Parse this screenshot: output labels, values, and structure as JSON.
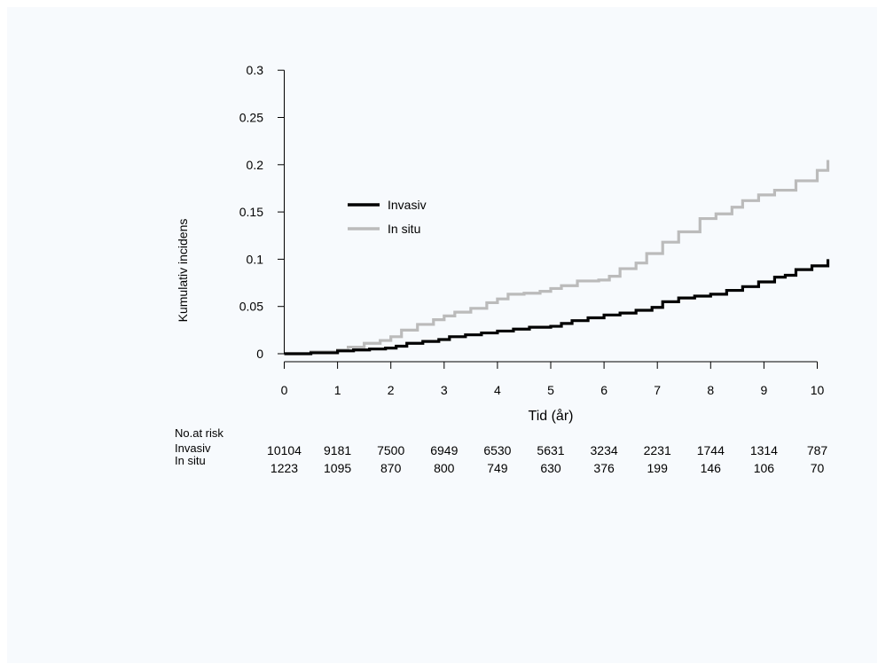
{
  "chart_data": {
    "type": "line",
    "step": true,
    "title": "",
    "xlabel": "Tid (år)",
    "ylabel": "Kumulativ incidens",
    "xlim": [
      0,
      10.2
    ],
    "ylim": [
      0,
      0.3
    ],
    "x_ticks": [
      "0",
      "1",
      "2",
      "3",
      "4",
      "5",
      "6",
      "7",
      "8",
      "9",
      "10"
    ],
    "y_ticks": [
      "0",
      "0.05",
      "0.1",
      "0.15",
      "0.2",
      "0.25",
      "0.3"
    ],
    "legend_placement": "top-left",
    "series": [
      {
        "name": "Invasiv",
        "color": "#000000",
        "x": [
          0,
          0.5,
          1.0,
          1.3,
          1.6,
          1.9,
          2.1,
          2.3,
          2.6,
          2.9,
          3.1,
          3.4,
          3.7,
          4.0,
          4.3,
          4.6,
          5.0,
          5.2,
          5.4,
          5.7,
          6.0,
          6.3,
          6.6,
          6.9,
          7.1,
          7.4,
          7.7,
          8.0,
          8.3,
          8.6,
          8.9,
          9.2,
          9.4,
          9.6,
          9.9,
          10.2
        ],
        "y": [
          0,
          0.001,
          0.003,
          0.004,
          0.005,
          0.006,
          0.008,
          0.011,
          0.013,
          0.015,
          0.018,
          0.02,
          0.022,
          0.024,
          0.026,
          0.028,
          0.029,
          0.032,
          0.035,
          0.038,
          0.041,
          0.043,
          0.046,
          0.049,
          0.055,
          0.059,
          0.061,
          0.063,
          0.067,
          0.071,
          0.076,
          0.081,
          0.083,
          0.089,
          0.093,
          0.1
        ]
      },
      {
        "name": "In situ",
        "color": "#bbbbbb",
        "x": [
          0,
          0.5,
          1.0,
          1.2,
          1.5,
          1.8,
          2.0,
          2.2,
          2.5,
          2.8,
          3.0,
          3.2,
          3.5,
          3.8,
          4.0,
          4.2,
          4.5,
          4.8,
          5.0,
          5.2,
          5.5,
          5.9,
          6.1,
          6.3,
          6.6,
          6.8,
          7.1,
          7.4,
          7.8,
          8.1,
          8.4,
          8.6,
          8.9,
          9.2,
          9.6,
          10.0,
          10.2
        ],
        "y": [
          0,
          0.002,
          0.004,
          0.007,
          0.011,
          0.014,
          0.018,
          0.025,
          0.031,
          0.036,
          0.04,
          0.044,
          0.048,
          0.054,
          0.058,
          0.063,
          0.064,
          0.066,
          0.069,
          0.072,
          0.077,
          0.078,
          0.082,
          0.09,
          0.096,
          0.106,
          0.118,
          0.129,
          0.143,
          0.148,
          0.155,
          0.162,
          0.168,
          0.173,
          0.183,
          0.194,
          0.205
        ]
      }
    ],
    "risk_table": {
      "header": "No.at risk",
      "times": [
        0,
        1,
        2,
        3,
        4,
        5,
        6,
        7,
        8,
        9,
        10
      ],
      "rows": [
        {
          "label": "Invasiv",
          "values": [
            "10104",
            "9181",
            "7500",
            "6949",
            "6530",
            "5631",
            "3234",
            "2231",
            "1744",
            "1314",
            "787"
          ]
        },
        {
          "label": "In situ",
          "values": [
            "1223",
            "1095",
            "870",
            "800",
            "749",
            "630",
            "376",
            "199",
            "146",
            "106",
            "70"
          ]
        }
      ]
    }
  }
}
